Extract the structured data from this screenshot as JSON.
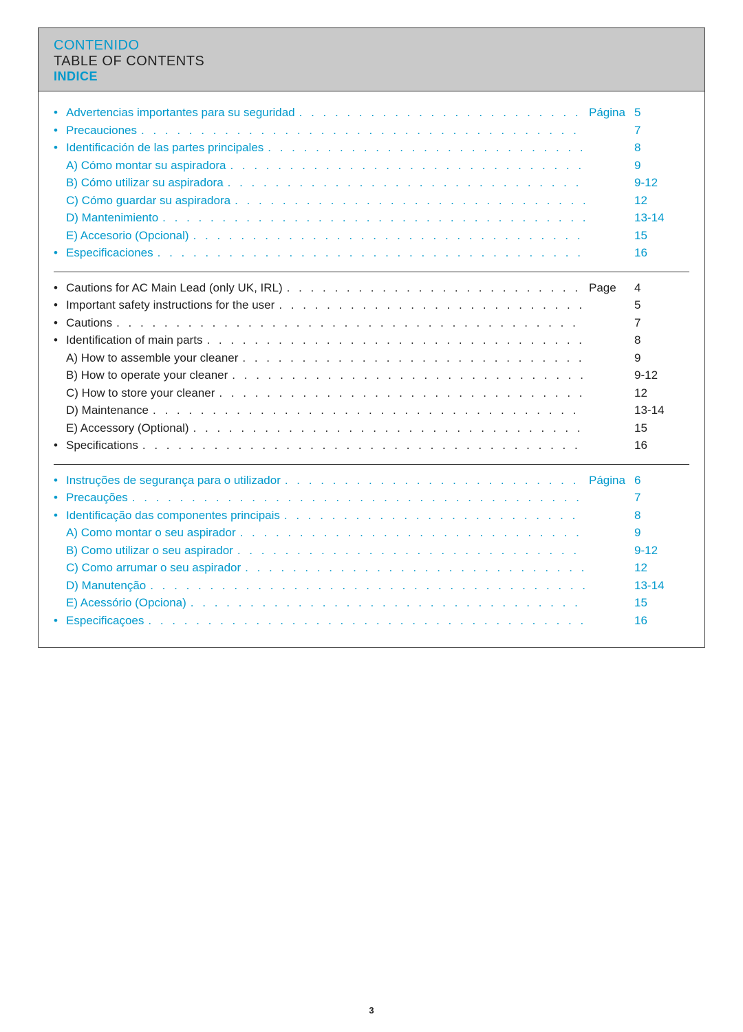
{
  "pageNumber": "3",
  "colors": {
    "accent": "#0099cc",
    "text": "#222222",
    "headerBg": "#c9c9c9",
    "border": "#333333"
  },
  "header": {
    "line1": "CONTENIDO",
    "line2": "TABLE OF CONTENTS",
    "line3": "INDICE"
  },
  "sections": [
    {
      "color": "blue",
      "pageLabel": "Página",
      "rows": [
        {
          "bullet": true,
          "label": "Advertencias importantes para su seguridad",
          "showPageLabel": true,
          "num": "5"
        },
        {
          "bullet": true,
          "label": "Precauciones",
          "num": "7"
        },
        {
          "bullet": true,
          "label": "Identificación de las partes principales",
          "num": "8"
        },
        {
          "bullet": false,
          "label": "A) Cómo montar su aspiradora",
          "num": "9"
        },
        {
          "bullet": false,
          "label": "B) Cómo utilizar su aspiradora",
          "num": "9-12"
        },
        {
          "bullet": false,
          "label": "C) Cómo guardar su aspiradora",
          "num": "12"
        },
        {
          "bullet": false,
          "label": "D) Mantenimiento",
          "num": "13-14"
        },
        {
          "bullet": false,
          "label": "E) Accesorio (Opcional)",
          "num": "15"
        },
        {
          "bullet": true,
          "label": "Especificaciones",
          "num": "16"
        }
      ]
    },
    {
      "color": "black",
      "pageLabel": "Page",
      "rows": [
        {
          "bullet": true,
          "label": "Cautions for AC Main Lead (only UK, IRL)",
          "showPageLabel": true,
          "num": "4"
        },
        {
          "bullet": true,
          "label": "Important safety instructions for the user",
          "num": "5"
        },
        {
          "bullet": true,
          "label": "Cautions",
          "num": "7"
        },
        {
          "bullet": true,
          "label": "Identification of main parts",
          "num": "8"
        },
        {
          "bullet": false,
          "label": "A) How to assemble your cleaner",
          "num": "9"
        },
        {
          "bullet": false,
          "label": "B) How to operate your cleaner",
          "num": "9-12"
        },
        {
          "bullet": false,
          "label": "C) How to store your cleaner",
          "num": "12"
        },
        {
          "bullet": false,
          "label": "D) Maintenance",
          "num": "13-14"
        },
        {
          "bullet": false,
          "label": "E) Accessory (Optional)",
          "num": "15"
        },
        {
          "bullet": true,
          "label": "Specifications",
          "num": "16"
        }
      ]
    },
    {
      "color": "blue",
      "pageLabel": "Página",
      "rows": [
        {
          "bullet": true,
          "label": "Instruções de segurança para o utilizador",
          "showPageLabel": true,
          "num": "6"
        },
        {
          "bullet": true,
          "label": "Precauções",
          "num": "7"
        },
        {
          "bullet": true,
          "label": "Identificação das componentes principais",
          "num": "8"
        },
        {
          "bullet": false,
          "label": "A) Como montar o seu aspirador",
          "num": "9"
        },
        {
          "bullet": false,
          "label": "B) Como utilizar o  seu aspirador",
          "num": "9-12"
        },
        {
          "bullet": false,
          "label": "C) Como arrumar o seu aspirador",
          "num": "12"
        },
        {
          "bullet": false,
          "label": "D) Manutenção",
          "num": "13-14"
        },
        {
          "bullet": false,
          "label": "E) Acessório (Opciona)",
          "num": "15"
        },
        {
          "bullet": true,
          "label": "Especificaçoes",
          "num": "16"
        }
      ]
    }
  ]
}
